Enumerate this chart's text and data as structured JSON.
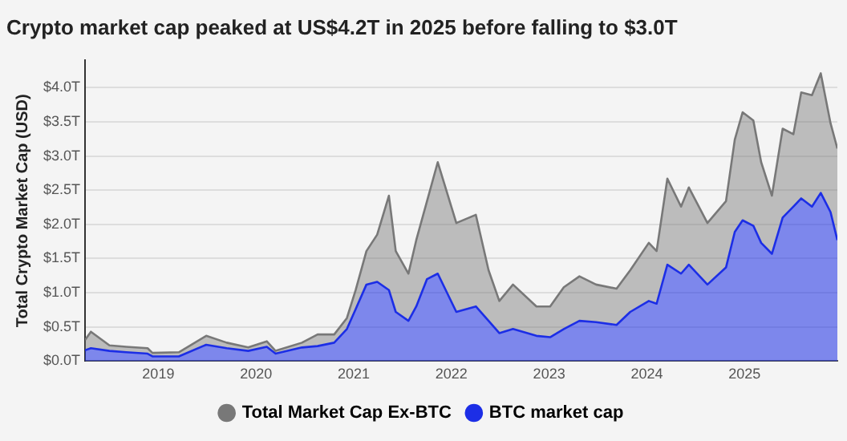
{
  "chart_data": {
    "type": "area",
    "stacked": true,
    "title": "Crypto market cap peaked at US$4.2T in 2025 before falling to $3.0T",
    "ylabel": "Total Crypto Market Cap (USD)",
    "x": [
      2018.25,
      2018.31,
      2018.5,
      2018.67,
      2018.89,
      2018.94,
      2019.21,
      2019.49,
      2019.7,
      2019.92,
      2020.11,
      2020.2,
      2020.47,
      2020.63,
      2020.8,
      2020.93,
      2021.02,
      2021.13,
      2021.24,
      2021.36,
      2021.43,
      2021.56,
      2021.64,
      2021.75,
      2021.86,
      2022.05,
      2022.25,
      2022.38,
      2022.49,
      2022.63,
      2022.87,
      2023.01,
      2023.15,
      2023.31,
      2023.48,
      2023.69,
      2023.83,
      2024.02,
      2024.1,
      2024.21,
      2024.35,
      2024.43,
      2024.62,
      2024.81,
      2024.9,
      2024.98,
      2025.09,
      2025.17,
      2025.28,
      2025.39,
      2025.5,
      2025.58,
      2025.69,
      2025.78,
      2025.88,
      2025.95
    ],
    "series": [
      {
        "name": "BTC market cap",
        "color": "#1c2ee6",
        "values": [
          0.16,
          0.19,
          0.15,
          0.13,
          0.11,
          0.07,
          0.07,
          0.24,
          0.19,
          0.15,
          0.21,
          0.11,
          0.2,
          0.22,
          0.27,
          0.47,
          0.76,
          1.12,
          1.16,
          1.04,
          0.72,
          0.59,
          0.8,
          1.2,
          1.28,
          0.72,
          0.8,
          0.59,
          0.41,
          0.47,
          0.37,
          0.35,
          0.47,
          0.59,
          0.57,
          0.53,
          0.72,
          0.88,
          0.84,
          1.41,
          1.28,
          1.41,
          1.12,
          1.37,
          1.89,
          2.06,
          1.98,
          1.73,
          1.57,
          2.1,
          2.26,
          2.38,
          2.26,
          2.46,
          2.18,
          1.77
        ]
      },
      {
        "name": "Total Market Cap Ex-BTC",
        "color": "#787878",
        "values": [
          0.15,
          0.24,
          0.08,
          0.08,
          0.08,
          0.05,
          0.06,
          0.13,
          0.08,
          0.05,
          0.08,
          0.04,
          0.07,
          0.17,
          0.12,
          0.16,
          0.28,
          0.49,
          0.69,
          1.38,
          0.89,
          0.69,
          0.97,
          1.14,
          1.63,
          1.3,
          1.34,
          0.74,
          0.47,
          0.65,
          0.43,
          0.45,
          0.61,
          0.65,
          0.55,
          0.53,
          0.61,
          0.85,
          0.77,
          1.26,
          0.98,
          1.13,
          0.9,
          0.97,
          1.35,
          1.58,
          1.54,
          1.18,
          0.85,
          1.3,
          1.06,
          1.55,
          1.63,
          1.75,
          1.3,
          1.34
        ]
      }
    ],
    "xlim": [
      2018.25,
      2025.95
    ],
    "xticks": [
      2019,
      2020,
      2021,
      2022,
      2023,
      2024,
      2025
    ],
    "ylim": [
      0,
      4.4
    ],
    "yticks": [
      {
        "value": 0,
        "label": "$0.0T"
      },
      {
        "value": 0.5,
        "label": "$0.5T"
      },
      {
        "value": 1,
        "label": "$1.0T"
      },
      {
        "value": 1.5,
        "label": "$1.5T"
      },
      {
        "value": 2,
        "label": "$2.0T"
      },
      {
        "value": 2.5,
        "label": "$2.5T"
      },
      {
        "value": 3,
        "label": "$3.0T"
      },
      {
        "value": 3.5,
        "label": "$3.5T"
      },
      {
        "value": 4,
        "label": "$4.0T"
      }
    ],
    "grid": "y",
    "legend": "bottom",
    "marker": "none",
    "line_style": "solid"
  }
}
